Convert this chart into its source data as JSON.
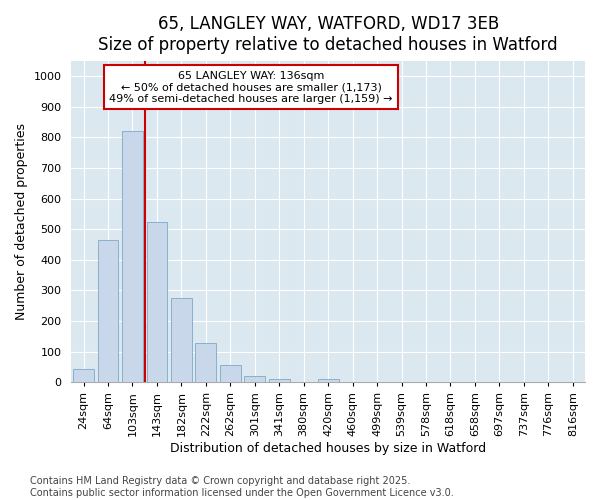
{
  "title_line1": "65, LANGLEY WAY, WATFORD, WD17 3EB",
  "title_line2": "Size of property relative to detached houses in Watford",
  "xlabel": "Distribution of detached houses by size in Watford",
  "ylabel": "Number of detached properties",
  "categories": [
    "24sqm",
    "64sqm",
    "103sqm",
    "143sqm",
    "182sqm",
    "222sqm",
    "262sqm",
    "301sqm",
    "341sqm",
    "380sqm",
    "420sqm",
    "460sqm",
    "499sqm",
    "539sqm",
    "578sqm",
    "618sqm",
    "658sqm",
    "697sqm",
    "737sqm",
    "776sqm",
    "816sqm"
  ],
  "values": [
    45,
    465,
    820,
    525,
    275,
    130,
    55,
    22,
    10,
    0,
    10,
    0,
    0,
    0,
    0,
    0,
    0,
    0,
    0,
    0,
    0
  ],
  "bar_color": "#c8d8ea",
  "bar_edge_color": "#8ab0cc",
  "vline_x_index": 3,
  "vline_color": "#cc0000",
  "annotation_text": "65 LANGLEY WAY: 136sqm\n← 50% of detached houses are smaller (1,173)\n49% of semi-detached houses are larger (1,159) →",
  "annotation_box_color": "#ffffff",
  "annotation_box_edge": "#cc0000",
  "ylim": [
    0,
    1050
  ],
  "yticks": [
    0,
    100,
    200,
    300,
    400,
    500,
    600,
    700,
    800,
    900,
    1000
  ],
  "fig_bg_color": "#ffffff",
  "plot_bg_color": "#dce8f0",
  "grid_color": "#ffffff",
  "footer_line1": "Contains HM Land Registry data © Crown copyright and database right 2025.",
  "footer_line2": "Contains public sector information licensed under the Open Government Licence v3.0.",
  "title_fontsize": 12,
  "subtitle_fontsize": 10,
  "axis_label_fontsize": 9,
  "tick_fontsize": 8,
  "annotation_fontsize": 8,
  "footer_fontsize": 7
}
